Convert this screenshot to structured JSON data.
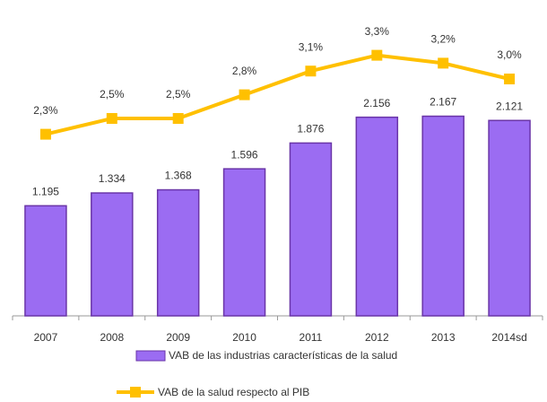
{
  "chart_data": {
    "type": "bar",
    "categories": [
      "2007",
      "2008",
      "2009",
      "2010",
      "2011",
      "2012",
      "2013",
      "2014sd"
    ],
    "series": [
      {
        "name": "VAB de las industrias características de la salud",
        "color": "#9b6cf2",
        "edge": "#6a35a8",
        "values": [
          1195,
          1334,
          1368,
          1596,
          1876,
          2156,
          2167,
          2121
        ],
        "value_labels": [
          "1.195",
          "1.334",
          "1.368",
          "1.596",
          "1.876",
          "2.156",
          "2.167",
          "2.121"
        ]
      },
      {
        "name": "VAB de la salud respecto al PIB",
        "color": "#ffc000",
        "axis": "y2",
        "values": [
          2.3,
          2.5,
          2.5,
          2.8,
          3.1,
          3.3,
          3.2,
          3.0
        ],
        "value_labels": [
          "2,3%",
          "2,5%",
          "2,5%",
          "2,8%",
          "3,1%",
          "3,3%",
          "3,2%",
          "3,0%"
        ]
      }
    ],
    "ylim": [
      0,
      3000
    ],
    "y2lim": [
      0,
      3.5
    ]
  }
}
